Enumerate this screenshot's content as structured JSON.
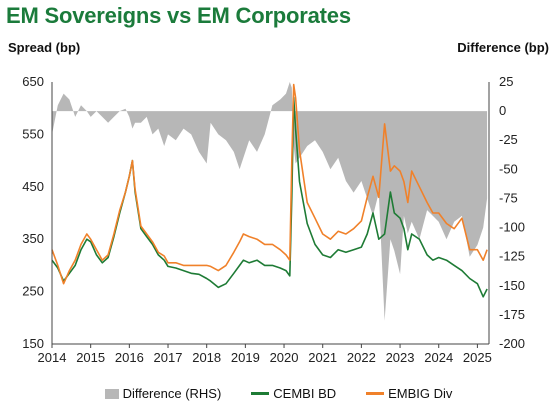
{
  "title": "EM Sovereigns vs EM Corporates",
  "left_axis_label": "Spread (bp)",
  "right_axis_label": "Difference (bp)",
  "colors": {
    "title": "#1b7b3b",
    "difference": "#b7b7b7",
    "cembi": "#1e7b35",
    "embig": "#f0812a"
  },
  "legend": [
    {
      "label": "Difference (RHS)",
      "color": "#b7b7b7",
      "kind": "area"
    },
    {
      "label": "CEMBI BD",
      "color": "#1e7b35",
      "kind": "line"
    },
    {
      "label": "EMBIG Div",
      "color": "#f0812a",
      "kind": "line"
    }
  ],
  "chart_data": {
    "type": "line",
    "x_ticks": [
      "2014",
      "2015",
      "2016",
      "2017",
      "2018",
      "2019",
      "2020",
      "2021",
      "2022",
      "2023",
      "2024",
      "2025"
    ],
    "y_left": {
      "ticks": [
        650,
        550,
        450,
        350,
        250,
        150
      ],
      "range": [
        150,
        650
      ]
    },
    "y_right": {
      "ticks": [
        25,
        0,
        -25,
        -50,
        -75,
        -100,
        -125,
        -150,
        -175,
        -200
      ],
      "range": [
        -200,
        25
      ]
    },
    "series": [
      {
        "name": "CEMBI BD",
        "axis": "left",
        "x": [
          2014.0,
          2014.15,
          2014.3,
          2014.45,
          2014.6,
          2014.75,
          2014.9,
          2015.0,
          2015.15,
          2015.3,
          2015.45,
          2015.6,
          2015.75,
          2015.9,
          2016.0,
          2016.08,
          2016.15,
          2016.3,
          2016.45,
          2016.6,
          2016.75,
          2016.9,
          2017.0,
          2017.2,
          2017.4,
          2017.6,
          2017.8,
          2018.0,
          2018.1,
          2018.3,
          2018.5,
          2018.7,
          2018.85,
          2018.95,
          2019.1,
          2019.3,
          2019.5,
          2019.7,
          2019.9,
          2020.05,
          2020.15,
          2020.2,
          2020.25,
          2020.3,
          2020.4,
          2020.6,
          2020.8,
          2021.0,
          2021.2,
          2021.4,
          2021.6,
          2021.8,
          2022.0,
          2022.15,
          2022.3,
          2022.45,
          2022.6,
          2022.75,
          2022.85,
          2023.0,
          2023.1,
          2023.2,
          2023.3,
          2023.5,
          2023.7,
          2023.85,
          2024.0,
          2024.2,
          2024.4,
          2024.6,
          2024.8,
          2025.0,
          2025.15,
          2025.25
        ],
        "values": [
          310,
          295,
          270,
          285,
          300,
          330,
          350,
          345,
          320,
          305,
          315,
          355,
          400,
          440,
          470,
          500,
          440,
          370,
          355,
          340,
          320,
          310,
          298,
          295,
          290,
          285,
          283,
          275,
          270,
          258,
          265,
          285,
          300,
          310,
          305,
          310,
          300,
          300,
          295,
          290,
          280,
          430,
          620,
          560,
          460,
          380,
          340,
          320,
          315,
          330,
          325,
          330,
          335,
          360,
          400,
          350,
          360,
          440,
          400,
          390,
          370,
          330,
          360,
          350,
          320,
          310,
          315,
          310,
          300,
          290,
          275,
          265,
          240,
          255
        ]
      },
      {
        "name": "EMBIG Div",
        "axis": "left",
        "x": [
          2014.0,
          2014.15,
          2014.3,
          2014.45,
          2014.6,
          2014.75,
          2014.9,
          2015.0,
          2015.15,
          2015.3,
          2015.45,
          2015.6,
          2015.75,
          2015.9,
          2016.0,
          2016.08,
          2016.15,
          2016.3,
          2016.45,
          2016.6,
          2016.75,
          2016.9,
          2017.0,
          2017.2,
          2017.4,
          2017.6,
          2017.8,
          2018.0,
          2018.1,
          2018.3,
          2018.5,
          2018.7,
          2018.85,
          2018.95,
          2019.1,
          2019.3,
          2019.5,
          2019.7,
          2019.9,
          2020.05,
          2020.15,
          2020.2,
          2020.25,
          2020.3,
          2020.4,
          2020.6,
          2020.8,
          2021.0,
          2021.2,
          2021.4,
          2021.6,
          2021.8,
          2022.0,
          2022.15,
          2022.3,
          2022.45,
          2022.6,
          2022.75,
          2022.85,
          2023.0,
          2023.1,
          2023.2,
          2023.3,
          2023.5,
          2023.7,
          2023.85,
          2024.0,
          2024.2,
          2024.4,
          2024.6,
          2024.8,
          2025.0,
          2025.15,
          2025.25
        ],
        "values": [
          330,
          300,
          265,
          290,
          310,
          340,
          360,
          350,
          330,
          310,
          320,
          360,
          405,
          440,
          470,
          500,
          445,
          375,
          360,
          345,
          325,
          318,
          305,
          305,
          300,
          300,
          300,
          300,
          298,
          290,
          300,
          325,
          345,
          360,
          355,
          350,
          340,
          340,
          330,
          320,
          310,
          500,
          645,
          620,
          520,
          420,
          390,
          360,
          350,
          365,
          360,
          370,
          385,
          430,
          470,
          430,
          570,
          480,
          490,
          480,
          460,
          420,
          480,
          450,
          420,
          400,
          400,
          380,
          370,
          390,
          330,
          330,
          310,
          330
        ]
      },
      {
        "name": "Difference (RHS)",
        "axis": "right",
        "x": [
          2014.0,
          2014.15,
          2014.3,
          2014.45,
          2014.6,
          2014.75,
          2014.9,
          2015.0,
          2015.15,
          2015.3,
          2015.45,
          2015.6,
          2015.75,
          2015.9,
          2016.0,
          2016.08,
          2016.15,
          2016.3,
          2016.45,
          2016.6,
          2016.75,
          2016.9,
          2017.0,
          2017.2,
          2017.4,
          2017.6,
          2017.8,
          2018.0,
          2018.1,
          2018.3,
          2018.5,
          2018.7,
          2018.85,
          2018.95,
          2019.1,
          2019.3,
          2019.5,
          2019.7,
          2019.9,
          2020.05,
          2020.15,
          2020.2,
          2020.25,
          2020.3,
          2020.4,
          2020.6,
          2020.8,
          2021.0,
          2021.2,
          2021.4,
          2021.6,
          2021.8,
          2022.0,
          2022.15,
          2022.3,
          2022.45,
          2022.6,
          2022.75,
          2022.85,
          2023.0,
          2023.1,
          2023.2,
          2023.3,
          2023.5,
          2023.7,
          2023.85,
          2024.0,
          2024.2,
          2024.4,
          2024.6,
          2024.8,
          2025.0,
          2025.15,
          2025.25
        ],
        "values": [
          -20,
          5,
          15,
          10,
          -5,
          5,
          0,
          -5,
          0,
          -5,
          -10,
          -5,
          0,
          2,
          -5,
          -15,
          -10,
          -10,
          -5,
          -20,
          -15,
          -30,
          -20,
          -25,
          -15,
          -20,
          -35,
          -45,
          -10,
          -20,
          -25,
          -35,
          -50,
          -40,
          -25,
          -35,
          -20,
          5,
          10,
          15,
          25,
          20,
          -30,
          -45,
          -40,
          -30,
          -25,
          -35,
          -50,
          -40,
          -60,
          -70,
          -60,
          -75,
          -90,
          -70,
          -180,
          -110,
          -120,
          -140,
          -90,
          -105,
          -95,
          -110,
          -85,
          -90,
          -95,
          -110,
          -95,
          -90,
          -125,
          -115,
          -100,
          -75
        ]
      }
    ]
  }
}
